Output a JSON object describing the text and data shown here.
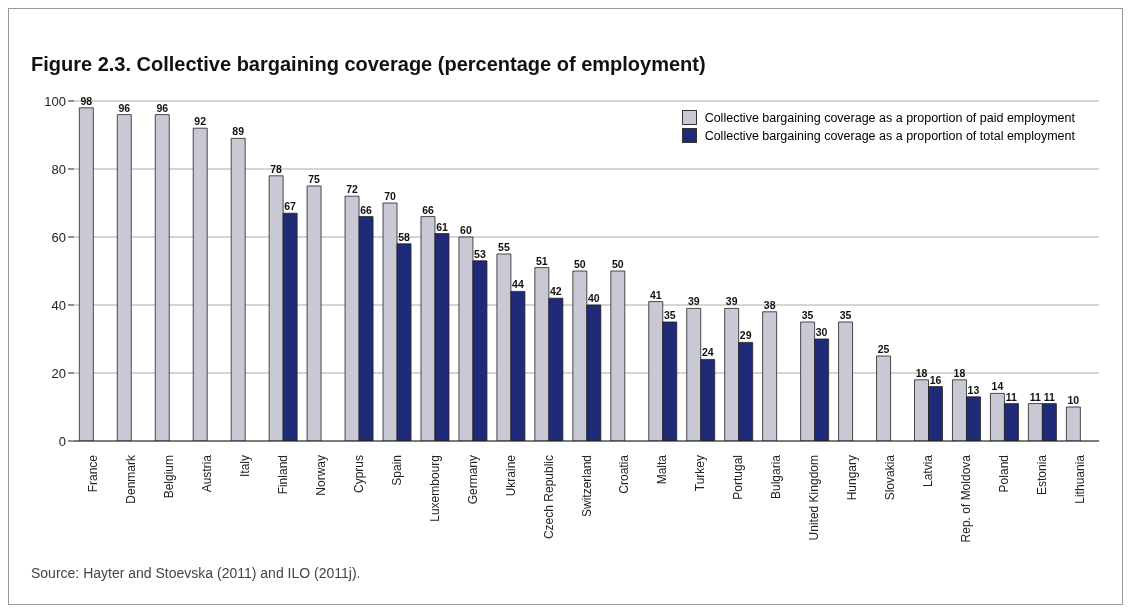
{
  "chart_data": {
    "type": "bar",
    "title": "Figure 2.3.  Collective bargaining coverage (percentage of employment)",
    "categories": [
      "France",
      "Denmark",
      "Belgium",
      "Austria",
      "Italy",
      "Finland",
      "Norway",
      "Cyprus",
      "Spain",
      "Luxembourg",
      "Germany",
      "Ukraine",
      "Czech Republic",
      "Switzerland",
      "Croatia",
      "Malta",
      "Turkey",
      "Portugal",
      "Bulgaria",
      "United Kingdom",
      "Hungary",
      "Slovakia",
      "Latvia",
      "Rep. of Moldova",
      "Poland",
      "Estonia",
      "Lithuania"
    ],
    "series": [
      {
        "name": "Collective bargaining coverage as a proportion of paid employment",
        "color": "#c9c9d6",
        "values": [
          98,
          96,
          96,
          92,
          89,
          78,
          75,
          72,
          70,
          66,
          60,
          55,
          51,
          50,
          50,
          41,
          39,
          39,
          38,
          35,
          35,
          25,
          18,
          18,
          14,
          11,
          10
        ]
      },
      {
        "name": "Collective bargaining coverage as a proportion of total employment",
        "color": "#1f2a78",
        "values": [
          null,
          null,
          null,
          null,
          null,
          67,
          null,
          66,
          58,
          61,
          53,
          44,
          42,
          40,
          null,
          35,
          24,
          29,
          null,
          30,
          null,
          null,
          16,
          13,
          11,
          11,
          null
        ]
      }
    ],
    "ylim": [
      0,
      100
    ],
    "yticks": [
      0,
      20,
      40,
      60,
      80,
      100
    ],
    "grid": "y",
    "legend": "top right",
    "data_labels": true,
    "annotations": [
      "Source: Hayter and Stoevska (2011) and ILO (2011j)."
    ]
  }
}
